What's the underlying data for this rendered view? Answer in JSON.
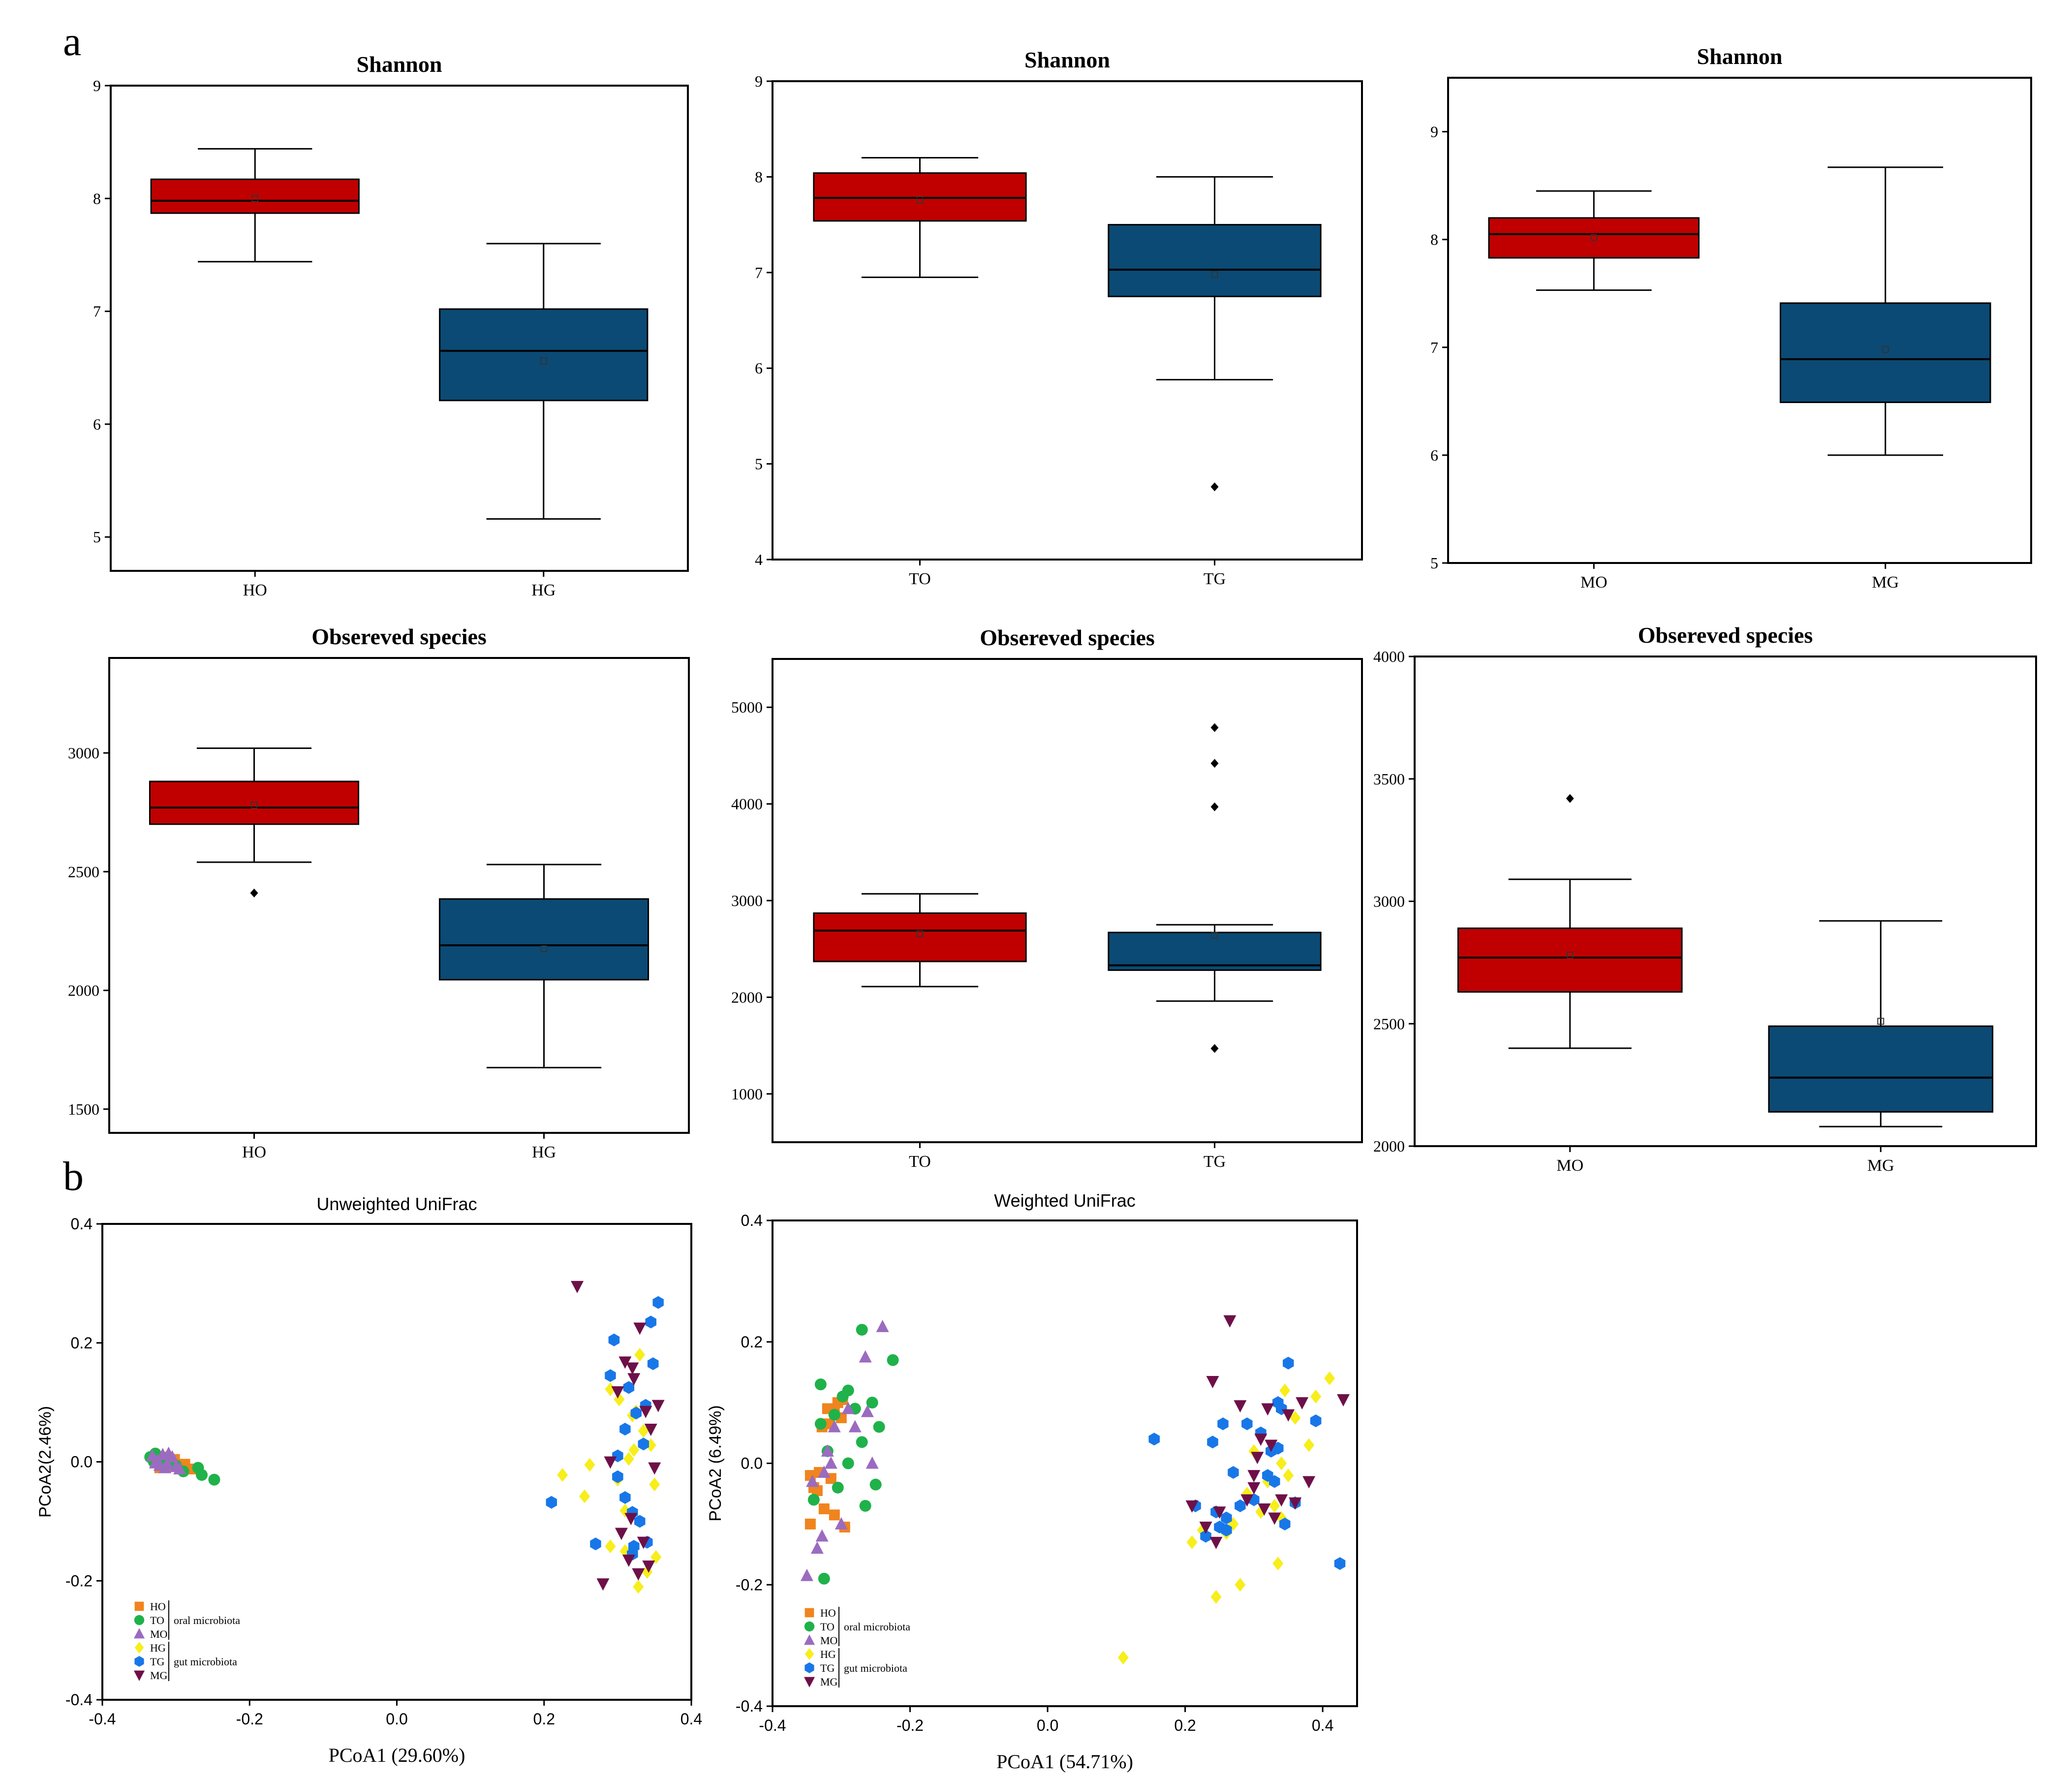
{
  "panel_labels": {
    "a": "a",
    "b": "b"
  },
  "colors": {
    "oral_box": "#C00000",
    "gut_box": "#0B4A74",
    "HO": "#F0841E",
    "TO": "#1FB24A",
    "MO": "#9B6BC0",
    "HG": "#F7EE1B",
    "TG": "#1877E8",
    "MG": "#6E1048"
  },
  "legend": {
    "items": [
      "HO",
      "TO",
      "MO",
      "HG",
      "TG",
      "MG"
    ],
    "oral_label": "oral microbiota",
    "gut_label": "gut microbiota"
  },
  "chart_data": [
    {
      "id": "shannon-h",
      "type": "boxplot",
      "title": "Shannon",
      "categories": [
        "HO",
        "HG"
      ],
      "ylim": [
        4.7,
        9.0
      ],
      "yticks": [
        "5",
        "6",
        "7",
        "8",
        "9"
      ],
      "ytick_values": [
        5,
        6,
        7,
        8,
        9
      ],
      "boxes": [
        {
          "category": "HO",
          "whisker_low": 7.44,
          "q1": 7.87,
          "median": 7.98,
          "q3": 8.17,
          "whisker_high": 8.44,
          "mean": 8.0,
          "outliers": []
        },
        {
          "category": "HG",
          "whisker_low": 5.16,
          "q1": 6.21,
          "median": 6.65,
          "q3": 7.02,
          "whisker_high": 7.6,
          "mean": 6.56,
          "outliers": []
        }
      ]
    },
    {
      "id": "shannon-t",
      "type": "boxplot",
      "title": "Shannon",
      "categories": [
        "TO",
        "TG"
      ],
      "ylim": [
        4.0,
        9.0
      ],
      "yticks": [
        "4",
        "5",
        "6",
        "7",
        "8",
        "9"
      ],
      "ytick_values": [
        4,
        5,
        6,
        7,
        8,
        9
      ],
      "boxes": [
        {
          "category": "TO",
          "whisker_low": 6.95,
          "q1": 7.54,
          "median": 7.78,
          "q3": 8.04,
          "whisker_high": 8.2,
          "mean": 7.76,
          "outliers": []
        },
        {
          "category": "TG",
          "whisker_low": 5.88,
          "q1": 6.75,
          "median": 7.03,
          "q3": 7.5,
          "whisker_high": 8.0,
          "mean": 6.98,
          "outliers": [
            4.76
          ]
        }
      ]
    },
    {
      "id": "shannon-m",
      "type": "boxplot",
      "title": "Shannon",
      "categories": [
        "MO",
        "MG"
      ],
      "ylim": [
        5.0,
        9.5
      ],
      "yticks": [
        "5",
        "6",
        "7",
        "8",
        "9"
      ],
      "ytick_values": [
        5,
        6,
        7,
        8,
        9
      ],
      "boxes": [
        {
          "category": "MO",
          "whisker_low": 7.53,
          "q1": 7.83,
          "median": 8.05,
          "q3": 8.2,
          "whisker_high": 8.45,
          "mean": 8.02,
          "outliers": []
        },
        {
          "category": "MG",
          "whisker_low": 6.0,
          "q1": 6.49,
          "median": 6.89,
          "q3": 7.41,
          "whisker_high": 8.67,
          "mean": 6.98,
          "outliers": []
        }
      ]
    },
    {
      "id": "obs-h",
      "type": "boxplot",
      "title": "Obsereved species",
      "categories": [
        "HO",
        "HG"
      ],
      "ylim": [
        1400,
        3400
      ],
      "yticks": [
        "1500",
        "2000",
        "2500",
        "3000"
      ],
      "ytick_values": [
        1500,
        2000,
        2500,
        3000
      ],
      "boxes": [
        {
          "category": "HO",
          "whisker_low": 2540,
          "q1": 2700,
          "median": 2770,
          "q3": 2880,
          "whisker_high": 3020,
          "mean": 2780,
          "outliers": [
            2410
          ]
        },
        {
          "category": "HG",
          "whisker_low": 1675,
          "q1": 2045,
          "median": 2190,
          "q3": 2385,
          "whisker_high": 2530,
          "mean": 2175,
          "outliers": []
        }
      ]
    },
    {
      "id": "obs-t",
      "type": "boxplot",
      "title": "Obsereved species",
      "categories": [
        "TO",
        "TG"
      ],
      "ylim": [
        500,
        5500
      ],
      "yticks": [
        "1000",
        "2000",
        "3000",
        "4000",
        "5000"
      ],
      "ytick_values": [
        1000,
        2000,
        3000,
        4000,
        5000
      ],
      "boxes": [
        {
          "category": "TO",
          "whisker_low": 2110,
          "q1": 2370,
          "median": 2690,
          "q3": 2870,
          "whisker_high": 3070,
          "mean": 2660,
          "outliers": []
        },
        {
          "category": "TG",
          "whisker_low": 1960,
          "q1": 2280,
          "median": 2330,
          "q3": 2670,
          "whisker_high": 2750,
          "mean": 2640,
          "outliers": [
            1470,
            3970,
            4420,
            4790
          ]
        }
      ]
    },
    {
      "id": "obs-m",
      "type": "boxplot",
      "title": "Obsereved species",
      "categories": [
        "MO",
        "MG"
      ],
      "ylim": [
        2000,
        4000
      ],
      "yticks": [
        "2000",
        "2500",
        "3000",
        "3500",
        "4000"
      ],
      "ytick_values": [
        2000,
        2500,
        3000,
        3500,
        4000
      ],
      "boxes": [
        {
          "category": "MO",
          "whisker_low": 2400,
          "q1": 2630,
          "median": 2770,
          "q3": 2890,
          "whisker_high": 3090,
          "mean": 2780,
          "outliers": [
            3420
          ]
        },
        {
          "category": "MG",
          "whisker_low": 2080,
          "q1": 2140,
          "median": 2280,
          "q3": 2490,
          "whisker_high": 2920,
          "mean": 2510,
          "outliers": []
        }
      ]
    },
    {
      "id": "pcoa-unweighted",
      "type": "scatter",
      "title": "Unweighted UniFrac",
      "xlabel": "PCoA1  (29.60%)",
      "ylabel": "PCoA2(2.46%)",
      "xlim": [
        -0.4,
        0.4
      ],
      "ylim": [
        -0.4,
        0.4
      ],
      "xticks": [
        "-0.4",
        "-0.2",
        "0.0",
        "0.2",
        "0.4"
      ],
      "xtick_values": [
        -0.4,
        -0.2,
        0.0,
        0.2,
        0.4
      ],
      "yticks": [
        "0.4",
        "0.2",
        "0.0",
        "-0.2",
        "-0.4"
      ],
      "ytick_values": [
        0.4,
        0.2,
        0.0,
        -0.2,
        -0.4
      ],
      "series": [
        {
          "name": "HO",
          "marker": "square",
          "x": [
            -0.325,
            -0.318,
            -0.31,
            -0.302,
            -0.295,
            -0.288,
            -0.28,
            -0.315,
            -0.305,
            -0.322
          ],
          "y": [
            0.005,
            0.0,
            -0.002,
            0.004,
            -0.006,
            -0.004,
            -0.012,
            0.008,
            -0.008,
            -0.01
          ]
        },
        {
          "name": "TO",
          "marker": "circle",
          "x": [
            -0.335,
            -0.328,
            -0.32,
            -0.312,
            -0.3,
            -0.29,
            -0.27,
            -0.265,
            -0.248,
            -0.33
          ],
          "y": [
            0.008,
            0.014,
            0.0,
            0.006,
            -0.006,
            -0.016,
            -0.01,
            -0.022,
            -0.03,
            0.0
          ]
        },
        {
          "name": "MO",
          "marker": "triangle-up",
          "x": [
            -0.332,
            -0.325,
            -0.318,
            -0.312,
            -0.305,
            -0.3,
            -0.322,
            -0.31,
            -0.295,
            -0.328,
            -0.315
          ],
          "y": [
            0.01,
            0.002,
            0.012,
            -0.004,
            0.008,
            -0.008,
            -0.006,
            0.014,
            -0.012,
            -0.002,
            -0.01
          ]
        },
        {
          "name": "HG",
          "marker": "diamond",
          "x": [
            0.225,
            0.255,
            0.262,
            0.29,
            0.3,
            0.31,
            0.315,
            0.32,
            0.322,
            0.328,
            0.33,
            0.335,
            0.34,
            0.345,
            0.35,
            0.352,
            0.29,
            0.302,
            0.325,
            0.31
          ],
          "y": [
            -0.022,
            -0.058,
            -0.005,
            -0.142,
            -0.03,
            -0.082,
            0.005,
            0.078,
            0.02,
            -0.21,
            0.18,
            0.052,
            -0.185,
            0.028,
            -0.038,
            -0.16,
            0.122,
            0.105,
            0.085,
            -0.15
          ]
        },
        {
          "name": "TG",
          "marker": "hexagon",
          "x": [
            0.21,
            0.27,
            0.29,
            0.295,
            0.3,
            0.31,
            0.315,
            0.32,
            0.322,
            0.325,
            0.33,
            0.335,
            0.338,
            0.34,
            0.345,
            0.348,
            0.355,
            0.3,
            0.32,
            0.31
          ],
          "y": [
            -0.068,
            -0.138,
            0.145,
            0.205,
            -0.025,
            0.055,
            0.125,
            -0.085,
            -0.142,
            0.082,
            -0.1,
            0.03,
            0.095,
            -0.135,
            0.235,
            0.165,
            0.268,
            0.01,
            -0.155,
            -0.06
          ]
        },
        {
          "name": "MG",
          "marker": "triangle-down",
          "x": [
            0.245,
            0.28,
            0.3,
            0.305,
            0.31,
            0.315,
            0.318,
            0.322,
            0.328,
            0.33,
            0.335,
            0.338,
            0.342,
            0.345,
            0.35,
            0.355,
            0.29,
            0.32
          ],
          "y": [
            0.295,
            -0.205,
            0.118,
            -0.12,
            0.168,
            -0.165,
            -0.095,
            0.14,
            -0.188,
            0.225,
            -0.135,
            0.085,
            -0.175,
            0.055,
            -0.01,
            0.095,
            0.0,
            0.158
          ]
        }
      ]
    },
    {
      "id": "pcoa-weighted",
      "type": "scatter",
      "title": "Weighted UniFrac",
      "xlabel": "PCoA1  (54.71%)",
      "ylabel": "PCoA2 (6.49%)",
      "xlim": [
        -0.4,
        0.45
      ],
      "ylim": [
        -0.4,
        0.4
      ],
      "xticks": [
        "-0.4",
        "-0.2",
        "0.0",
        "0.2",
        "0.4"
      ],
      "xtick_values": [
        -0.4,
        -0.2,
        0.0,
        0.2,
        0.4
      ],
      "yticks": [
        "0.4",
        "0.2",
        "0.0",
        "-0.2",
        "-0.4"
      ],
      "ytick_values": [
        0.4,
        0.2,
        0.0,
        -0.2,
        -0.4
      ],
      "series": [
        {
          "name": "HO",
          "marker": "square",
          "x": [
            -0.345,
            -0.335,
            -0.328,
            -0.32,
            -0.315,
            -0.31,
            -0.305,
            -0.3,
            -0.295,
            -0.34,
            -0.325,
            -0.31,
            -0.298,
            -0.318,
            -0.332,
            -0.345
          ],
          "y": [
            -0.1,
            -0.045,
            0.06,
            0.09,
            -0.025,
            -0.085,
            0.1,
            0.075,
            -0.105,
            -0.04,
            -0.075,
            0.085,
            0.105,
            0.065,
            -0.015,
            -0.02
          ]
        },
        {
          "name": "TO",
          "marker": "circle",
          "x": [
            -0.34,
            -0.33,
            -0.325,
            -0.32,
            -0.31,
            -0.305,
            -0.298,
            -0.29,
            -0.28,
            -0.27,
            -0.265,
            -0.255,
            -0.25,
            -0.245,
            -0.225,
            -0.29,
            -0.33,
            -0.27
          ],
          "y": [
            -0.06,
            0.13,
            -0.19,
            0.02,
            0.08,
            -0.04,
            0.11,
            0.0,
            0.09,
            0.035,
            -0.07,
            0.1,
            -0.035,
            0.06,
            0.17,
            0.12,
            0.065,
            0.22
          ]
        },
        {
          "name": "MO",
          "marker": "triangle-up",
          "x": [
            -0.35,
            -0.342,
            -0.335,
            -0.328,
            -0.32,
            -0.31,
            -0.3,
            -0.29,
            -0.28,
            -0.265,
            -0.255,
            -0.24,
            -0.262,
            -0.325,
            -0.315
          ],
          "y": [
            -0.185,
            -0.03,
            -0.14,
            -0.12,
            0.02,
            0.06,
            -0.1,
            0.09,
            0.06,
            0.175,
            0.0,
            0.225,
            0.085,
            -0.015,
            0.0
          ]
        },
        {
          "name": "HG",
          "marker": "diamond",
          "x": [
            0.11,
            0.21,
            0.225,
            0.245,
            0.26,
            0.27,
            0.28,
            0.29,
            0.3,
            0.31,
            0.32,
            0.33,
            0.335,
            0.34,
            0.345,
            0.35,
            0.36,
            0.38,
            0.39,
            0.41,
            0.34,
            0.3
          ],
          "y": [
            -0.32,
            -0.13,
            -0.11,
            -0.22,
            -0.115,
            -0.1,
            -0.2,
            -0.05,
            0.02,
            -0.08,
            -0.03,
            -0.07,
            -0.165,
            -0.09,
            0.12,
            -0.02,
            0.075,
            0.03,
            0.11,
            0.14,
            0.0,
            -0.06
          ]
        },
        {
          "name": "TG",
          "marker": "hexagon",
          "x": [
            0.155,
            0.215,
            0.23,
            0.24,
            0.245,
            0.25,
            0.255,
            0.26,
            0.27,
            0.28,
            0.29,
            0.3,
            0.31,
            0.32,
            0.325,
            0.33,
            0.335,
            0.34,
            0.345,
            0.35,
            0.36,
            0.39,
            0.425,
            0.26,
            0.335
          ],
          "y": [
            0.04,
            -0.07,
            -0.12,
            0.035,
            -0.08,
            -0.105,
            0.065,
            -0.09,
            -0.015,
            -0.07,
            0.065,
            -0.06,
            0.05,
            -0.02,
            0.02,
            -0.03,
            0.025,
            0.09,
            -0.1,
            0.165,
            -0.065,
            0.07,
            -0.165,
            -0.11,
            0.1
          ]
        },
        {
          "name": "MG",
          "marker": "triangle-down",
          "x": [
            0.21,
            0.23,
            0.24,
            0.25,
            0.265,
            0.28,
            0.29,
            0.3,
            0.305,
            0.31,
            0.315,
            0.32,
            0.325,
            0.33,
            0.34,
            0.35,
            0.36,
            0.37,
            0.38,
            0.43,
            0.245,
            0.3
          ],
          "y": [
            -0.07,
            -0.105,
            0.135,
            -0.08,
            0.235,
            0.095,
            -0.06,
            -0.02,
            0.01,
            0.04,
            -0.075,
            0.09,
            0.03,
            -0.09,
            -0.06,
            0.08,
            -0.065,
            0.1,
            -0.03,
            0.105,
            -0.13,
            -0.04
          ]
        }
      ]
    }
  ]
}
